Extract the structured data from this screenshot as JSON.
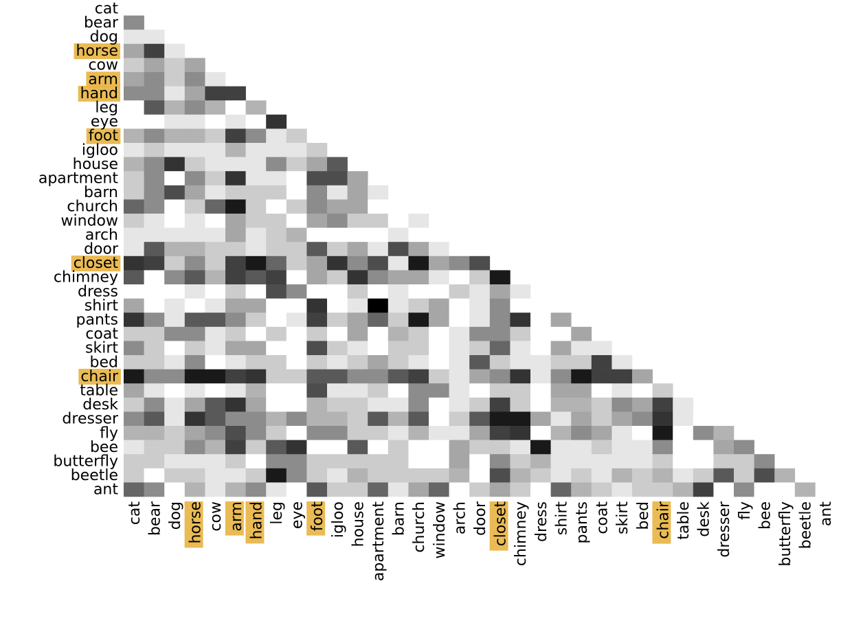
{
  "chart_data": {
    "type": "heatmap",
    "labels": [
      "cat",
      "bear",
      "dog",
      "horse",
      "cow",
      "arm",
      "hand",
      "leg",
      "eye",
      "foot",
      "igloo",
      "house",
      "apartment",
      "barn",
      "church",
      "window",
      "arch",
      "door",
      "closet",
      "chimney",
      "dress",
      "shirt",
      "pants",
      "coat",
      "skirt",
      "bed",
      "chair",
      "table",
      "desk",
      "dresser",
      "fly",
      "bee",
      "butterfly",
      "beetle",
      "ant"
    ],
    "highlighted": [
      3,
      5,
      6,
      9,
      18,
      26
    ],
    "highlight_color": "#e8b441",
    "zlim": [
      0,
      1
    ],
    "colormap": "greys",
    "values": [
      [],
      [
        0.45
      ],
      [
        0.1,
        0.1
      ],
      [
        0.35,
        0.75,
        0.1
      ],
      [
        0.2,
        0.35,
        0.2,
        0.35
      ],
      [
        0.35,
        0.45,
        0.2,
        0.45,
        0.1
      ],
      [
        0.45,
        0.45,
        0.1,
        0.35,
        0.75,
        0.75
      ],
      [
        0,
        0.65,
        0.3,
        0.45,
        0.3,
        0,
        0.3
      ],
      [
        0,
        0,
        0.1,
        0.1,
        0,
        0.1,
        0,
        0.8
      ],
      [
        0.3,
        0.45,
        0.3,
        0.3,
        0.2,
        0.75,
        0.45,
        0.1,
        0.2
      ],
      [
        0.1,
        0.2,
        0.1,
        0.1,
        0.1,
        0.3,
        0.1,
        0.1,
        0.1,
        0.2
      ],
      [
        0.3,
        0.45,
        0.8,
        0.2,
        0.1,
        0.1,
        0.1,
        0.45,
        0.2,
        0.35,
        0.65
      ],
      [
        0.2,
        0.45,
        0,
        0.45,
        0.2,
        0.8,
        0.1,
        0.1,
        0,
        0.7,
        0.7,
        0.35
      ],
      [
        0.2,
        0.45,
        0.7,
        0.35,
        0.1,
        0.2,
        0.2,
        0.2,
        0,
        0.45,
        0.1,
        0.35,
        0.1
      ],
      [
        0.6,
        0.45,
        0,
        0.2,
        0.6,
        0.9,
        0.2,
        0,
        0.2,
        0.45,
        0.35,
        0.35,
        0,
        0
      ],
      [
        0.2,
        0.1,
        0,
        0.1,
        0,
        0.35,
        0.2,
        0.2,
        0,
        0.35,
        0.45,
        0.2,
        0.2,
        0,
        0.1
      ],
      [
        0.1,
        0.1,
        0.1,
        0.1,
        0.1,
        0.35,
        0.1,
        0.2,
        0.3,
        0,
        0,
        0,
        0,
        0.1,
        0,
        0
      ],
      [
        0.1,
        0.65,
        0.3,
        0.3,
        0.2,
        0.2,
        0.1,
        0.2,
        0.2,
        0.65,
        0.2,
        0.35,
        0.1,
        0.7,
        0.35,
        0.1,
        0
      ],
      [
        0.8,
        0.75,
        0.2,
        0.45,
        0.2,
        0.75,
        0.9,
        0.6,
        0.2,
        0.35,
        0.8,
        0.45,
        0.7,
        0.1,
        0.9,
        0.35,
        0.45,
        0.7
      ],
      [
        0.65,
        0,
        0.45,
        0.65,
        0.3,
        0.75,
        0.65,
        0.75,
        0,
        0.35,
        0.2,
        0.8,
        0.45,
        0.35,
        0.35,
        0.1,
        0,
        0.2,
        0.9
      ],
      [
        0,
        0,
        0,
        0.1,
        0,
        0.2,
        0,
        0.7,
        0.45,
        0,
        0,
        0.2,
        0,
        0.1,
        0,
        0,
        0.2,
        0.1,
        0.35,
        0.1
      ],
      [
        0.35,
        0,
        0.1,
        0,
        0.1,
        0.35,
        0.35,
        0,
        0,
        0.8,
        0,
        0.1,
        1,
        0.1,
        0.2,
        0.35,
        0,
        0.1,
        0.45,
        0,
        0
      ],
      [
        0.8,
        0.45,
        0.1,
        0.65,
        0.65,
        0.45,
        0.2,
        0,
        0.1,
        0.75,
        0.2,
        0.35,
        0.6,
        0.2,
        0.9,
        0.35,
        0,
        0.1,
        0.45,
        0.8,
        0,
        0.35
      ],
      [
        0.2,
        0.2,
        0.45,
        0.45,
        0.1,
        0.2,
        0,
        0.2,
        0,
        0.2,
        0,
        0.35,
        0,
        0.3,
        0.2,
        0,
        0.1,
        0.45,
        0.45,
        0.2,
        0,
        0,
        0.35
      ],
      [
        0.45,
        0.2,
        0,
        0.2,
        0.1,
        0.35,
        0.35,
        0,
        0,
        0.7,
        0.2,
        0.1,
        0,
        0.2,
        0.2,
        0,
        0.1,
        0.2,
        0.6,
        0.1,
        0,
        0.35,
        0.1,
        0.1
      ],
      [
        0.2,
        0.2,
        0.1,
        0.45,
        0,
        0.1,
        0.2,
        0.2,
        0,
        0.2,
        0.1,
        0.2,
        0.35,
        0.2,
        0.1,
        0,
        0.1,
        0.65,
        0.2,
        0.1,
        0.1,
        0.2,
        0.2,
        0.75,
        0.1
      ],
      [
        0.9,
        0.45,
        0.45,
        0.9,
        0.9,
        0.75,
        0.8,
        0.2,
        0.2,
        0.65,
        0.65,
        0.45,
        0.45,
        0.65,
        0.75,
        0.2,
        0.1,
        0.35,
        0.45,
        0.8,
        0.1,
        0.45,
        0.9,
        0.75,
        0.75,
        0.35
      ],
      [
        0.35,
        0.1,
        0,
        0.1,
        0,
        0.1,
        0.3,
        0,
        0,
        0.7,
        0.1,
        0.1,
        0.2,
        0,
        0.45,
        0.45,
        0.1,
        0,
        0.2,
        0.2,
        0,
        0.35,
        0.35,
        0,
        0.1,
        0,
        0.2
      ],
      [
        0.2,
        0.45,
        0.1,
        0.35,
        0.65,
        0.8,
        0.35,
        0,
        0,
        0.3,
        0.2,
        0.2,
        0.1,
        0.1,
        0.45,
        0,
        0.1,
        0.2,
        0.75,
        0.2,
        0,
        0.3,
        0.3,
        0.2,
        0.45,
        0.35,
        0.75,
        0.1
      ],
      [
        0.45,
        0.65,
        0.1,
        0.8,
        0.65,
        0.45,
        0.45,
        0.3,
        0.45,
        0.3,
        0.3,
        0.2,
        0.65,
        0.3,
        0.65,
        0,
        0.2,
        0.65,
        0.9,
        0.9,
        0.35,
        0.1,
        0.35,
        0.2,
        0.35,
        0.45,
        0.8,
        0.1,
        0
      ],
      [
        0.3,
        0.3,
        0.2,
        0.35,
        0.45,
        0.7,
        0.45,
        0.2,
        0,
        0.45,
        0.45,
        0.2,
        0.2,
        0.1,
        0.3,
        0.1,
        0.1,
        0.35,
        0.75,
        0.8,
        0,
        0.3,
        0.45,
        0.35,
        0.1,
        0,
        0.9,
        0,
        0.45,
        0.3
      ],
      [
        0.1,
        0.2,
        0.2,
        0.45,
        0.3,
        0.75,
        0.2,
        0.65,
        0.8,
        0,
        0,
        0.65,
        0,
        0.2,
        0,
        0,
        0.35,
        0.2,
        0.2,
        0.1,
        0.9,
        0.1,
        0.1,
        0.2,
        0.1,
        0.1,
        0.45,
        0,
        0,
        0.35,
        0.45
      ],
      [
        0.2,
        0.2,
        0.1,
        0.1,
        0.1,
        0.2,
        0,
        0.45,
        0.45,
        0.2,
        0.2,
        0.2,
        0.2,
        0.2,
        0,
        0,
        0.35,
        0,
        0.45,
        0.2,
        0.3,
        0.1,
        0.1,
        0.1,
        0.1,
        0.1,
        0.2,
        0,
        0,
        0.2,
        0.2,
        0.45
      ],
      [
        0.2,
        0,
        0.2,
        0.2,
        0.1,
        0.1,
        0.2,
        0.9,
        0.45,
        0.2,
        0.1,
        0.3,
        0.2,
        0.2,
        0.2,
        0.2,
        0.3,
        0,
        0.7,
        0.3,
        0.2,
        0.1,
        0.2,
        0.1,
        0.3,
        0.2,
        0.3,
        0.1,
        0.2,
        0.65,
        0.2,
        0.7,
        0.3
      ],
      [
        0.6,
        0.45,
        0,
        0.3,
        0.1,
        0.3,
        0.45,
        0.1,
        0,
        0.65,
        0.2,
        0.2,
        0.6,
        0.1,
        0.35,
        0.6,
        0,
        0.2,
        0.35,
        0.2,
        0,
        0.6,
        0.3,
        0.2,
        0.1,
        0.2,
        0.2,
        0.3,
        0.75,
        0,
        0.45,
        0,
        0,
        0.3
      ]
    ]
  }
}
